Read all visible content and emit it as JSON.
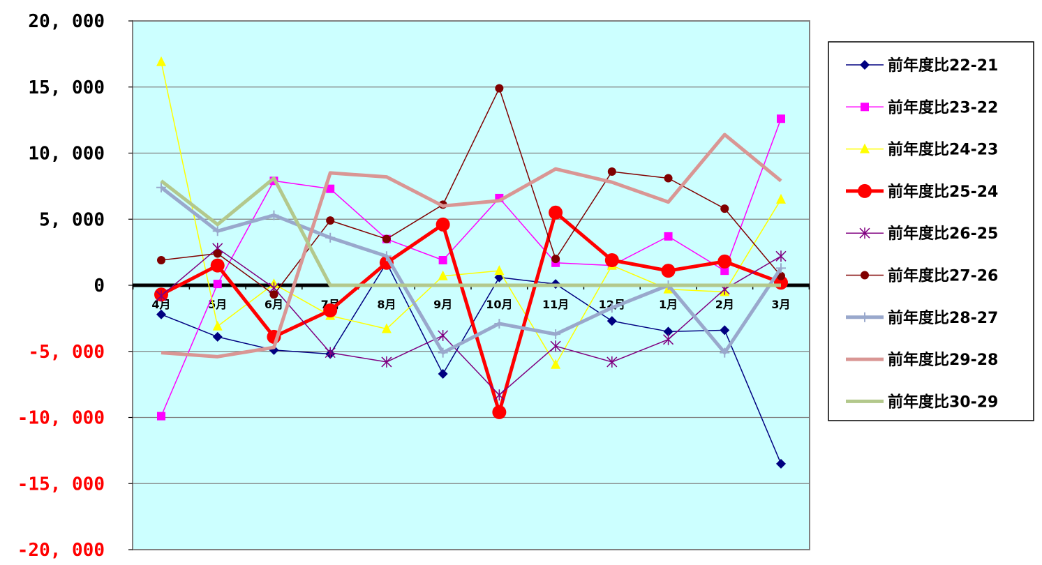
{
  "chart_data": {
    "type": "line",
    "title": "",
    "xlabel": "",
    "ylabel": "",
    "ylim": [
      -20000,
      20000
    ],
    "y_ticks": [
      20000,
      15000,
      10000,
      5000,
      0,
      -5000,
      -10000,
      -15000,
      -20000
    ],
    "y_tick_labels": [
      "20, 000",
      "15, 000",
      "10, 000",
      "5, 000",
      "0",
      "-5, 000",
      "-10, 000",
      "-15, 000",
      "-20, 000"
    ],
    "negative_tick_color": "#ff0000",
    "positive_tick_color": "#000000",
    "plot_background": "#ccffff",
    "grid": true,
    "legend_position": "right",
    "categories": [
      "4月",
      "5月",
      "6月",
      "7月",
      "8月",
      "9月",
      "10月",
      "11月",
      "12月",
      "1月",
      "2月",
      "3月"
    ],
    "series": [
      {
        "name": "前年度比22-21",
        "color": "#000080",
        "marker": "diamond",
        "width": 1.5,
        "values": [
          -2200,
          -3900,
          -4900,
          -5200,
          1700,
          -6700,
          600,
          100,
          -2700,
          -3500,
          -3400,
          -13500
        ]
      },
      {
        "name": "前年度比23-22",
        "color": "#ff00ff",
        "marker": "square",
        "width": 1.5,
        "values": [
          -9900,
          100,
          7900,
          7300,
          3500,
          1900,
          6600,
          1700,
          1500,
          3700,
          1100,
          12600
        ]
      },
      {
        "name": "前年度比24-23",
        "color": "#ffff00",
        "marker": "triangle",
        "width": 1.5,
        "values": [
          16900,
          -3100,
          100,
          -2300,
          -3300,
          700,
          1100,
          -6000,
          1500,
          -300,
          -500,
          6500
        ]
      },
      {
        "name": "前年度比25-24",
        "color": "#ff0000",
        "marker": "circle-large",
        "width": 5,
        "values": [
          -700,
          1500,
          -3900,
          -1900,
          1700,
          4600,
          -9600,
          5500,
          1900,
          1100,
          1800,
          200
        ]
      },
      {
        "name": "前年度比26-25",
        "color": "#800080",
        "marker": "star",
        "width": 1.5,
        "values": [
          -800,
          2800,
          -200,
          -5100,
          -5800,
          -3800,
          -8300,
          -4600,
          -5800,
          -4100,
          -300,
          2200
        ]
      },
      {
        "name": "前年度比27-26",
        "color": "#800000",
        "marker": "circle",
        "width": 1.5,
        "values": [
          1900,
          2400,
          -700,
          4900,
          3500,
          6100,
          14900,
          2000,
          8600,
          8100,
          5800,
          700
        ]
      },
      {
        "name": "前年度比28-27",
        "color": "#99a8cc",
        "marker": "plus",
        "width": 5,
        "values": [
          7400,
          4100,
          5300,
          3600,
          2200,
          -5100,
          -2900,
          -3700,
          -1700,
          0,
          -5100,
          1300
        ]
      },
      {
        "name": "前年度比29-28",
        "color": "#d99694",
        "marker": "none",
        "width": 5,
        "values": [
          -5100,
          -5400,
          -4700,
          8500,
          8200,
          6000,
          6400,
          8800,
          7800,
          6300,
          11400,
          7900
        ]
      },
      {
        "name": "前年度比30-29",
        "color": "#b3c88c",
        "marker": "none",
        "width": 5,
        "values": [
          7900,
          4600,
          8100,
          0,
          0,
          0,
          0,
          0,
          0,
          0,
          0,
          0
        ]
      }
    ]
  }
}
